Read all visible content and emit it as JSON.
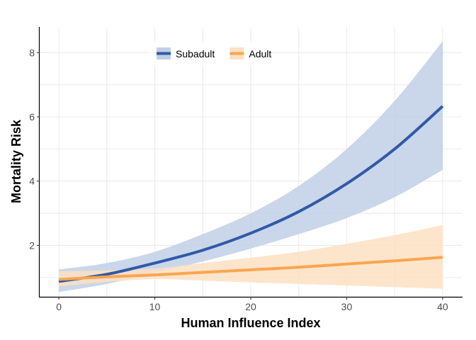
{
  "chart_data": {
    "type": "line",
    "xlabel": "Human Influence Index",
    "ylabel": "Mortality Risk",
    "xlim": [
      -2,
      42
    ],
    "ylim": [
      0.4,
      8.8
    ],
    "x_ticks": [
      0,
      10,
      20,
      30,
      40
    ],
    "y_ticks": [
      2,
      4,
      6,
      8
    ],
    "grid": true,
    "legend_position": "top-left-inside",
    "series": [
      {
        "name": "Subadult",
        "color": "#2e5aa8",
        "band_color": "#c1cfe6",
        "x": [
          0,
          5,
          10,
          15,
          20,
          25,
          30,
          35,
          40
        ],
        "y": [
          0.88,
          1.1,
          1.45,
          1.85,
          2.38,
          3.05,
          3.92,
          5.0,
          6.33
        ],
        "lower": [
          0.55,
          0.8,
          1.15,
          1.5,
          1.9,
          2.35,
          2.85,
          3.5,
          4.35
        ],
        "upper": [
          1.25,
          1.45,
          1.8,
          2.35,
          3.0,
          3.85,
          5.0,
          6.5,
          8.35
        ]
      },
      {
        "name": "Adult",
        "color": "#fba550",
        "band_color": "#fde0c2",
        "x": [
          0,
          5,
          10,
          15,
          20,
          25,
          30,
          35,
          40
        ],
        "y": [
          0.94,
          1.02,
          1.08,
          1.16,
          1.24,
          1.32,
          1.42,
          1.52,
          1.63
        ],
        "lower": [
          0.72,
          0.86,
          0.95,
          0.9,
          0.85,
          0.8,
          0.75,
          0.7,
          0.65
        ],
        "upper": [
          1.2,
          1.22,
          1.28,
          1.45,
          1.62,
          1.8,
          2.05,
          2.32,
          2.63
        ]
      }
    ]
  }
}
